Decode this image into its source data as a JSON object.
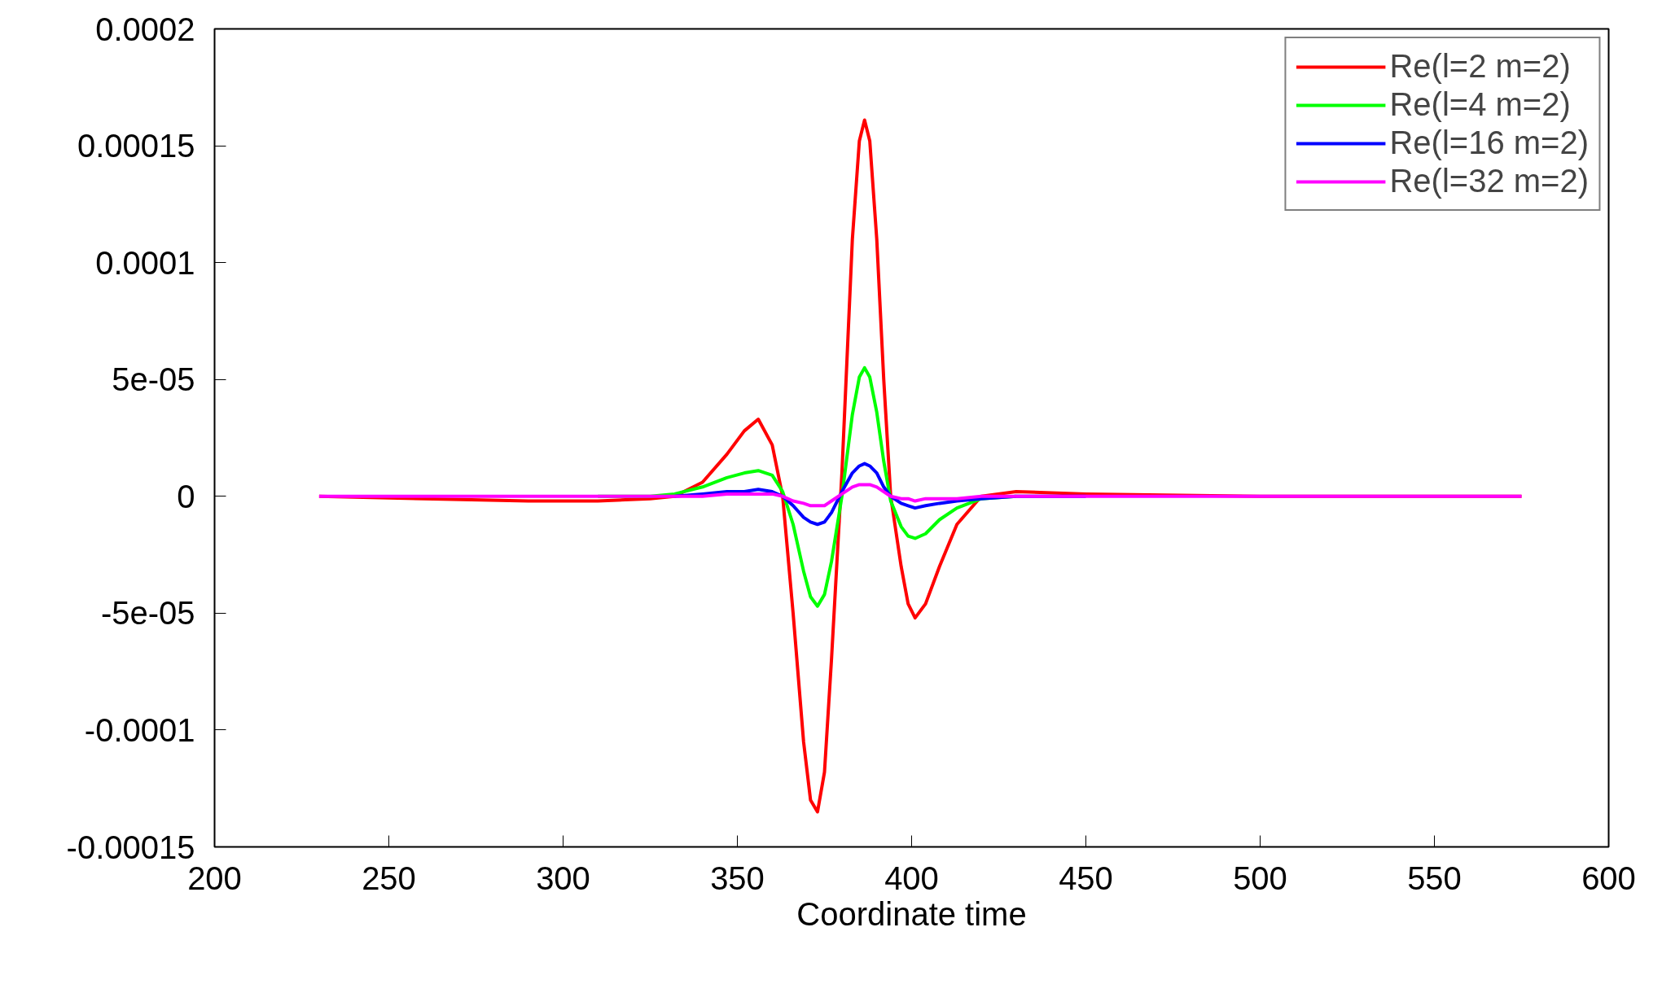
{
  "chart_data": {
    "type": "line",
    "xlabel": "Coordinate time",
    "xlim": [
      200,
      600
    ],
    "xticks": [
      200,
      250,
      300,
      350,
      400,
      450,
      500,
      550,
      600
    ],
    "ylim": [
      -0.00015,
      0.0002
    ],
    "yticks": [
      {
        "value": -0.00015,
        "label": "-0.00015"
      },
      {
        "value": -0.0001,
        "label": "-0.0001"
      },
      {
        "value": -5e-05,
        "label": "-5e-05"
      },
      0,
      {
        "value": 5e-05,
        "label": "5e-05"
      },
      {
        "value": 0.0001,
        "label": "0.0001"
      },
      {
        "value": 0.00015,
        "label": "0.00015"
      },
      {
        "value": 0.0002,
        "label": "0.0002"
      }
    ],
    "x": [
      230,
      260,
      290,
      310,
      325,
      332,
      340,
      347,
      352,
      356,
      360,
      363,
      366,
      369,
      371,
      373,
      375,
      377,
      380,
      383,
      385,
      386.5,
      388,
      390,
      392,
      394,
      397,
      399,
      401,
      404,
      408,
      413,
      420,
      430,
      450,
      500,
      575
    ],
    "legend": "top right",
    "grid": false,
    "line_style": "solid",
    "marker": "none",
    "series": [
      {
        "name": "Re(l=2 m=2)",
        "color": "#ff0000",
        "values": [
          0,
          -1e-06,
          -2e-06,
          -2e-06,
          -1e-06,
          0,
          6e-06,
          1.8e-05,
          2.8e-05,
          3.3e-05,
          2.2e-05,
          0,
          -5e-05,
          -0.000105,
          -0.00013,
          -0.000135,
          -0.000118,
          -7e-05,
          1e-05,
          0.00011,
          0.000152,
          0.000161,
          0.000152,
          0.00011,
          5e-05,
          0,
          -3e-05,
          -4.6e-05,
          -5.2e-05,
          -4.6e-05,
          -3e-05,
          -1.2e-05,
          0,
          2e-06,
          1e-06,
          0,
          0
        ]
      },
      {
        "name": "Re(l=4 m=2)",
        "color": "#00ff00",
        "values": [
          null,
          null,
          null,
          0,
          0,
          1e-06,
          4e-06,
          8e-06,
          1e-05,
          1.1e-05,
          9e-06,
          2e-06,
          -1.2e-05,
          -3.2e-05,
          -4.3e-05,
          -4.7e-05,
          -4.2e-05,
          -2.8e-05,
          0,
          3.5e-05,
          5.1e-05,
          5.5e-05,
          5.1e-05,
          3.6e-05,
          1.5e-05,
          -2e-06,
          -1.3e-05,
          -1.7e-05,
          -1.8e-05,
          -1.6e-05,
          -1e-05,
          -5e-06,
          -1e-06,
          0,
          null,
          null,
          null
        ]
      },
      {
        "name": "Re(l=16 m=2)",
        "color": "#0000ff",
        "values": [
          null,
          null,
          null,
          null,
          null,
          0,
          1e-06,
          2e-06,
          2e-06,
          3e-06,
          2e-06,
          0,
          -4e-06,
          -9e-06,
          -1.1e-05,
          -1.2e-05,
          -1.1e-05,
          -7e-06,
          2e-06,
          1e-05,
          1.3e-05,
          1.4e-05,
          1.3e-05,
          1e-05,
          4e-06,
          0,
          -3e-06,
          -4e-06,
          -5e-06,
          -4e-06,
          -3e-06,
          -2e-06,
          -1e-06,
          0,
          0,
          null,
          null
        ]
      },
      {
        "name": "Re(l=32 m=2)",
        "color": "#ff00ff",
        "values": [
          0,
          0,
          0,
          0,
          0,
          0,
          0,
          1e-06,
          1e-06,
          1e-06,
          1e-06,
          0,
          -2e-06,
          -3e-06,
          -4e-06,
          -4e-06,
          -4e-06,
          -2e-06,
          1e-06,
          4e-06,
          5e-06,
          5e-06,
          5e-06,
          4e-06,
          2e-06,
          0,
          -1e-06,
          -1e-06,
          -2e-06,
          -1e-06,
          -1e-06,
          -1e-06,
          0,
          0,
          0,
          0,
          0
        ]
      }
    ]
  }
}
